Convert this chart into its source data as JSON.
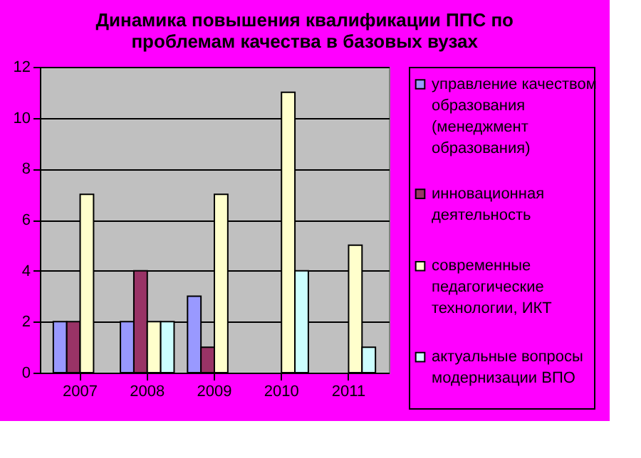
{
  "chart_data": {
    "type": "bar",
    "title": "Динамика повышения квалификации ППС по проблемам качества в базовых вузах",
    "categories": [
      "2007",
      "2008",
      "2009",
      "2010",
      "2011"
    ],
    "series": [
      {
        "name": "управление качеством образования (менеджмент образования)",
        "color": "#9999ff",
        "values": [
          2,
          2,
          3,
          0,
          0
        ]
      },
      {
        "name": "инновационная деятельность",
        "color": "#993366",
        "values": [
          2,
          4,
          1,
          0,
          0
        ]
      },
      {
        "name": "современные педагогические технологии, ИКТ",
        "color": "#ffffcc",
        "values": [
          7,
          2,
          7,
          11,
          5
        ]
      },
      {
        "name": "актуальные вопросы модернизации ВПО",
        "color": "#ccffff",
        "values": [
          0,
          2,
          0,
          4,
          1
        ]
      }
    ],
    "ylim": [
      0,
      12
    ],
    "yticks": [
      0,
      2,
      4,
      6,
      8,
      10,
      12
    ],
    "grid": "y",
    "legend": "right"
  }
}
